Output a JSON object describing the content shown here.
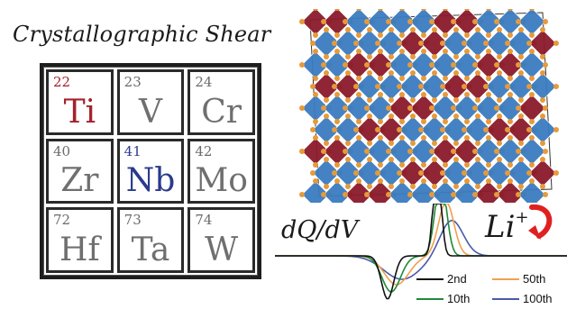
{
  "title": "Crystallographic Shear",
  "elements": [
    {
      "number": "22",
      "symbol": "Ti"
    },
    {
      "number": "23",
      "symbol": "V"
    },
    {
      "number": "24",
      "symbol": "Cr"
    },
    {
      "number": "40",
      "symbol": "Zr"
    },
    {
      "number": "41",
      "symbol": "Nb"
    },
    {
      "number": "42",
      "symbol": "Mo"
    },
    {
      "number": "72",
      "symbol": "Hf"
    },
    {
      "number": "73",
      "symbol": "Ta"
    },
    {
      "number": "74",
      "symbol": "W"
    }
  ],
  "highlight_colors": {
    "Ti": "#a3222c",
    "Nb": "#2a3a8c"
  },
  "plot_label": "dQ/dV",
  "ion_label": {
    "base": "Li",
    "charge": "+"
  },
  "legend": [
    {
      "label": "2nd",
      "color": "#111111"
    },
    {
      "label": "50th",
      "color": "#f0a050"
    },
    {
      "label": "10th",
      "color": "#1f8a3a"
    },
    {
      "label": "100th",
      "color": "#4a5aa8"
    }
  ],
  "polyhedra_colors": {
    "red": "#8b1a2b",
    "blue": "#3a7cc0",
    "atom": "#e69a3a"
  },
  "arrow_color": "#e02020"
}
